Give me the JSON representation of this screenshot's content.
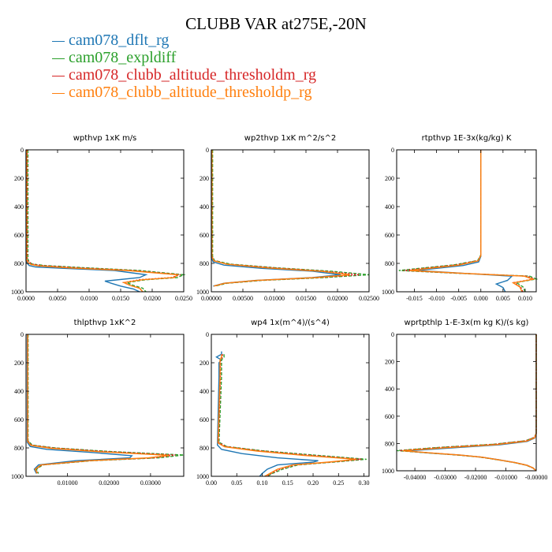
{
  "title": "CLUBB VAR at275E,-20N",
  "colors": {
    "dflt": "#1f77b4",
    "expldiff": "#2ca02c",
    "thm": "#d62728",
    "thp": "#ff7f0e"
  },
  "legend": [
    {
      "label": "cam078_dflt_rg",
      "color": "#1f77b4"
    },
    {
      "label": "cam078_expldiff",
      "color": "#2ca02c"
    },
    {
      "label": "cam078_clubb_altitude_thresholdm_rg",
      "color": "#d62728"
    },
    {
      "label": "cam078_clubb_altitude_thresholdp_rg",
      "color": "#ff7f0e"
    }
  ],
  "chart_data": [
    {
      "type": "line",
      "title": "wpthvp   1xK m/s",
      "xlim": [
        0,
        0.025
      ],
      "ylim": [
        1000,
        0
      ],
      "y_reversed": true,
      "xticks": [
        "0.0000",
        "0.0050",
        "0.0100",
        "0.0150",
        "0.0200",
        "0.0250"
      ],
      "xtick_values": [
        0,
        0.005,
        0.01,
        0.015,
        0.02,
        0.025
      ],
      "yticks": [
        "0",
        "200",
        "400",
        "600",
        "800",
        "1000"
      ],
      "ytick_values": [
        0,
        200,
        400,
        600,
        800,
        1000
      ],
      "series": [
        {
          "color": "#1f77b4",
          "dash": "",
          "x": [
            0,
            0,
            0.0002,
            0.0005,
            0.0015,
            0.006,
            0.014,
            0.019,
            0.018,
            0.0125,
            0.0135,
            0.015,
            0.017,
            0.018
          ],
          "y": [
            0,
            780,
            800,
            815,
            825,
            835,
            850,
            880,
            900,
            925,
            940,
            960,
            980,
            1000
          ]
        },
        {
          "color": "#2ca02c",
          "dash": "4,2",
          "x": [
            0.0003,
            0.0003,
            0.0005,
            0.001,
            0.003,
            0.009,
            0.018,
            0.025,
            0.024,
            0.019,
            0.016,
            0.017,
            0.0185,
            0.019
          ],
          "y": [
            0,
            770,
            790,
            805,
            815,
            830,
            850,
            880,
            900,
            915,
            935,
            955,
            975,
            1000
          ]
        },
        {
          "color": "#d62728",
          "dash": "2,2",
          "x": [
            0.0002,
            0.0002,
            0.0004,
            0.001,
            0.0025,
            0.008,
            0.017,
            0.0245,
            0.023,
            0.018,
            0.0155,
            0.0165,
            0.018,
            0.0185
          ],
          "y": [
            0,
            770,
            790,
            805,
            815,
            830,
            850,
            880,
            900,
            915,
            935,
            955,
            975,
            1000
          ]
        },
        {
          "color": "#ff7f0e",
          "dash": "",
          "x": [
            0.0001,
            0.0001,
            0.0003,
            0.0008,
            0.002,
            0.007,
            0.016,
            0.024,
            0.0235,
            0.0185,
            0.0155,
            0.0165,
            0.018,
            0.0185
          ],
          "y": [
            0,
            775,
            795,
            808,
            818,
            832,
            850,
            880,
            900,
            915,
            935,
            955,
            975,
            1000
          ]
        }
      ]
    },
    {
      "type": "line",
      "title": "wp2thvp   1xK m^2/s^2",
      "xlim": [
        0,
        0.025
      ],
      "ylim": [
        1000,
        0
      ],
      "y_reversed": true,
      "xticks": [
        "0.00000",
        "0.00500",
        "0.01000",
        "0.01500",
        "0.02000",
        "0.02500"
      ],
      "xtick_values": [
        0,
        0.005,
        0.01,
        0.015,
        0.02,
        0.025
      ],
      "yticks": [
        "0",
        "200",
        "400",
        "600",
        "800",
        "1000"
      ],
      "ytick_values": [
        0,
        200,
        400,
        600,
        800,
        1000
      ],
      "series": [
        {
          "color": "#1f77b4",
          "dash": "",
          "x": [
            0,
            0,
            0.0003,
            0.002,
            0.008,
            0.016,
            0.0205,
            0.016,
            0.007,
            0.002,
            0.0003
          ],
          "y": [
            0,
            760,
            790,
            812,
            835,
            855,
            880,
            900,
            920,
            940,
            960
          ]
        },
        {
          "color": "#2ca02c",
          "dash": "4,2",
          "x": [
            0.0002,
            0.0002,
            0.0005,
            0.003,
            0.01,
            0.019,
            0.025,
            0.018,
            0.008,
            0.0025,
            0.0006
          ],
          "y": [
            0,
            750,
            780,
            805,
            830,
            855,
            880,
            900,
            920,
            940,
            960
          ]
        },
        {
          "color": "#d62728",
          "dash": "2,2",
          "x": [
            0.0001,
            0.0001,
            0.0004,
            0.0025,
            0.0095,
            0.018,
            0.0235,
            0.017,
            0.0075,
            0.0022,
            0.0005
          ],
          "y": [
            0,
            750,
            780,
            805,
            830,
            855,
            880,
            900,
            920,
            940,
            960
          ]
        },
        {
          "color": "#ff7f0e",
          "dash": "",
          "x": [
            0.0001,
            0.0001,
            0.0004,
            0.0025,
            0.009,
            0.0175,
            0.022,
            0.0165,
            0.0072,
            0.0021,
            0.0004
          ],
          "y": [
            0,
            755,
            782,
            806,
            832,
            856,
            880,
            900,
            920,
            940,
            960
          ]
        }
      ]
    },
    {
      "type": "line",
      "title": "rtpthvp   1E-3x(kg/kg) K",
      "xlim": [
        -0.019,
        0.0125
      ],
      "ylim": [
        1000,
        0
      ],
      "y_reversed": true,
      "xticks": [
        "-0.015",
        "-0.010",
        "-0.005",
        "0.000",
        "0.005",
        "0.010"
      ],
      "xtick_values": [
        -0.015,
        -0.01,
        -0.005,
        0,
        0.005,
        0.01
      ],
      "yticks": [
        "0",
        "200",
        "400",
        "600",
        "800",
        "1000"
      ],
      "ytick_values": [
        0,
        200,
        400,
        600,
        800,
        1000
      ],
      "series": [
        {
          "color": "#1f77b4",
          "dash": "",
          "x": [
            0,
            0,
            -0.0005,
            -0.004,
            -0.0145,
            -0.004,
            0.007,
            0.006,
            0.0035,
            0.005,
            0.0055
          ],
          "y": [
            0,
            750,
            790,
            815,
            850,
            870,
            890,
            920,
            945,
            970,
            1000
          ]
        },
        {
          "color": "#2ca02c",
          "dash": "4,2",
          "x": [
            0,
            0,
            -0.0007,
            -0.006,
            -0.0185,
            -0.005,
            0.011,
            0.0125,
            0.008,
            0.0095,
            0.01
          ],
          "y": [
            0,
            740,
            780,
            810,
            850,
            870,
            890,
            910,
            935,
            965,
            1000
          ]
        },
        {
          "color": "#d62728",
          "dash": "2,2",
          "x": [
            0,
            0,
            -0.0006,
            -0.0055,
            -0.0175,
            -0.0045,
            0.0105,
            0.012,
            0.0075,
            0.009,
            0.0095
          ],
          "y": [
            0,
            740,
            780,
            810,
            850,
            870,
            890,
            910,
            935,
            965,
            1000
          ]
        },
        {
          "color": "#ff7f0e",
          "dash": "",
          "x": [
            0,
            0,
            -0.0006,
            -0.005,
            -0.016,
            -0.0042,
            0.0098,
            0.0118,
            0.0073,
            0.0088,
            0.0093
          ],
          "y": [
            0,
            745,
            782,
            812,
            850,
            870,
            890,
            912,
            937,
            966,
            1000
          ]
        }
      ]
    },
    {
      "type": "line",
      "title": "thlpthvp   1xK^2",
      "xlim": [
        0,
        0.038
      ],
      "ylim": [
        1000,
        0
      ],
      "y_reversed": true,
      "xticks": [
        "0.01000",
        "0.02000",
        "0.03000"
      ],
      "xtick_values": [
        0.01,
        0.02,
        0.03
      ],
      "yticks": [
        "0",
        "200",
        "400",
        "600",
        "800",
        "1000"
      ],
      "ytick_values": [
        0,
        200,
        400,
        600,
        800,
        1000
      ],
      "series": [
        {
          "color": "#1f77b4",
          "dash": "",
          "x": [
            0.0003,
            0.0003,
            0.001,
            0.005,
            0.015,
            0.0255,
            0.025,
            0.012,
            0.003,
            0.002,
            0.0025
          ],
          "y": [
            0,
            760,
            790,
            810,
            830,
            855,
            870,
            890,
            920,
            950,
            980
          ]
        },
        {
          "color": "#2ca02c",
          "dash": "4,2",
          "x": [
            0.0005,
            0.0005,
            0.0015,
            0.007,
            0.02,
            0.038,
            0.032,
            0.016,
            0.004,
            0.0025,
            0.003
          ],
          "y": [
            0,
            750,
            780,
            800,
            825,
            850,
            870,
            890,
            920,
            950,
            980
          ]
        },
        {
          "color": "#d62728",
          "dash": "2,2",
          "x": [
            0.0004,
            0.0004,
            0.0013,
            0.0065,
            0.019,
            0.036,
            0.031,
            0.0155,
            0.0038,
            0.0023,
            0.0028
          ],
          "y": [
            0,
            750,
            780,
            800,
            825,
            850,
            870,
            890,
            920,
            950,
            980
          ]
        },
        {
          "color": "#ff7f0e",
          "dash": "",
          "x": [
            0.0004,
            0.0004,
            0.0012,
            0.006,
            0.018,
            0.0345,
            0.0295,
            0.015,
            0.0036,
            0.0022,
            0.0027
          ],
          "y": [
            0,
            755,
            782,
            803,
            827,
            852,
            870,
            890,
            920,
            950,
            980
          ]
        }
      ]
    },
    {
      "type": "line",
      "title": "wp4   1x(m^4)/(s^4)",
      "xlim": [
        0,
        0.31
      ],
      "ylim": [
        1000,
        0
      ],
      "y_reversed": true,
      "xticks": [
        "0.00",
        "0.05",
        "0.10",
        "0.15",
        "0.20",
        "0.25",
        "0.30"
      ],
      "xtick_values": [
        0,
        0.05,
        0.1,
        0.15,
        0.2,
        0.25,
        0.3
      ],
      "yticks": [
        "0",
        "200",
        "400",
        "600",
        "800",
        "1000"
      ],
      "ytick_values": [
        0,
        200,
        400,
        600,
        800,
        1000
      ],
      "series": [
        {
          "color": "#1f77b4",
          "dash": "",
          "x": [
            0.02,
            0.02,
            0.01,
            0.02,
            0.015,
            0.015,
            0.012,
            0.02,
            0.06,
            0.13,
            0.21,
            0.2,
            0.13,
            0.11,
            0.1,
            0.095
          ],
          "y": [
            120,
            140,
            160,
            180,
            200,
            300,
            780,
            810,
            840,
            870,
            890,
            900,
            920,
            950,
            980,
            1000
          ]
        },
        {
          "color": "#2ca02c",
          "dash": "4,2",
          "x": [
            0.025,
            0.025,
            0.02,
            0.02,
            0.02,
            0.015,
            0.03,
            0.1,
            0.2,
            0.305,
            0.24,
            0.17,
            0.14,
            0.12,
            0.11
          ],
          "y": [
            140,
            160,
            180,
            200,
            300,
            760,
            790,
            820,
            850,
            880,
            900,
            920,
            950,
            980,
            1000
          ]
        },
        {
          "color": "#d62728",
          "dash": "2,2",
          "x": [
            0.022,
            0.022,
            0.018,
            0.018,
            0.018,
            0.014,
            0.028,
            0.095,
            0.19,
            0.295,
            0.235,
            0.165,
            0.135,
            0.118,
            0.108
          ],
          "y": [
            140,
            160,
            180,
            200,
            300,
            760,
            790,
            820,
            850,
            880,
            900,
            920,
            950,
            980,
            1000
          ]
        },
        {
          "color": "#ff7f0e",
          "dash": "",
          "x": [
            0.02,
            0.02,
            0.017,
            0.017,
            0.017,
            0.013,
            0.026,
            0.09,
            0.18,
            0.285,
            0.23,
            0.16,
            0.13,
            0.115,
            0.105
          ],
          "y": [
            140,
            160,
            180,
            200,
            300,
            765,
            792,
            822,
            852,
            880,
            900,
            920,
            950,
            980,
            1000
          ]
        }
      ]
    },
    {
      "type": "line",
      "title": "wprtpthlp   1-E-3x(m kg K)/(s kg)",
      "xlim": [
        -0.046,
        0
      ],
      "ylim": [
        1000,
        0
      ],
      "y_reversed": true,
      "xticks": [
        "-0.04000",
        "-0.03000",
        "-0.02000",
        "-0.01000",
        "-0.00000"
      ],
      "xtick_values": [
        -0.04,
        -0.03,
        -0.02,
        -0.01,
        0
      ],
      "yticks": [
        "0",
        "200",
        "400",
        "600",
        "800",
        "1000"
      ],
      "ytick_values": [
        0,
        200,
        400,
        600,
        800,
        1000
      ],
      "series": [
        {
          "color": "#1f77b4",
          "dash": "",
          "x": [
            0,
            0,
            -0.0005,
            -0.003,
            -0.012,
            -0.03,
            -0.043,
            -0.035,
            -0.025,
            -0.018,
            -0.012,
            -0.007,
            -0.003,
            -0.001,
            0
          ],
          "y": [
            0,
            730,
            760,
            785,
            810,
            835,
            855,
            870,
            885,
            900,
            920,
            940,
            960,
            980,
            1000
          ]
        },
        {
          "color": "#2ca02c",
          "dash": "4,2",
          "x": [
            0,
            0,
            -0.0006,
            -0.0035,
            -0.014,
            -0.033,
            -0.046,
            -0.036,
            -0.026,
            -0.0185,
            -0.0125,
            -0.0072,
            -0.0032,
            -0.0011,
            0
          ],
          "y": [
            0,
            725,
            755,
            780,
            805,
            830,
            852,
            868,
            885,
            900,
            920,
            940,
            960,
            980,
            1000
          ]
        },
        {
          "color": "#d62728",
          "dash": "2,2",
          "x": [
            0,
            0,
            -0.0006,
            -0.0034,
            -0.0135,
            -0.032,
            -0.045,
            -0.0355,
            -0.0255,
            -0.0182,
            -0.0123,
            -0.0071,
            -0.0031,
            -0.0011,
            0
          ],
          "y": [
            0,
            725,
            755,
            780,
            805,
            830,
            852,
            868,
            885,
            900,
            920,
            940,
            960,
            980,
            1000
          ]
        },
        {
          "color": "#ff7f0e",
          "dash": "",
          "x": [
            0,
            0,
            -0.0005,
            -0.0032,
            -0.013,
            -0.031,
            -0.044,
            -0.035,
            -0.025,
            -0.018,
            -0.0122,
            -0.007,
            -0.003,
            -0.001,
            0
          ],
          "y": [
            0,
            728,
            758,
            783,
            808,
            833,
            853,
            869,
            885,
            900,
            920,
            940,
            960,
            980,
            1000
          ]
        }
      ]
    }
  ]
}
